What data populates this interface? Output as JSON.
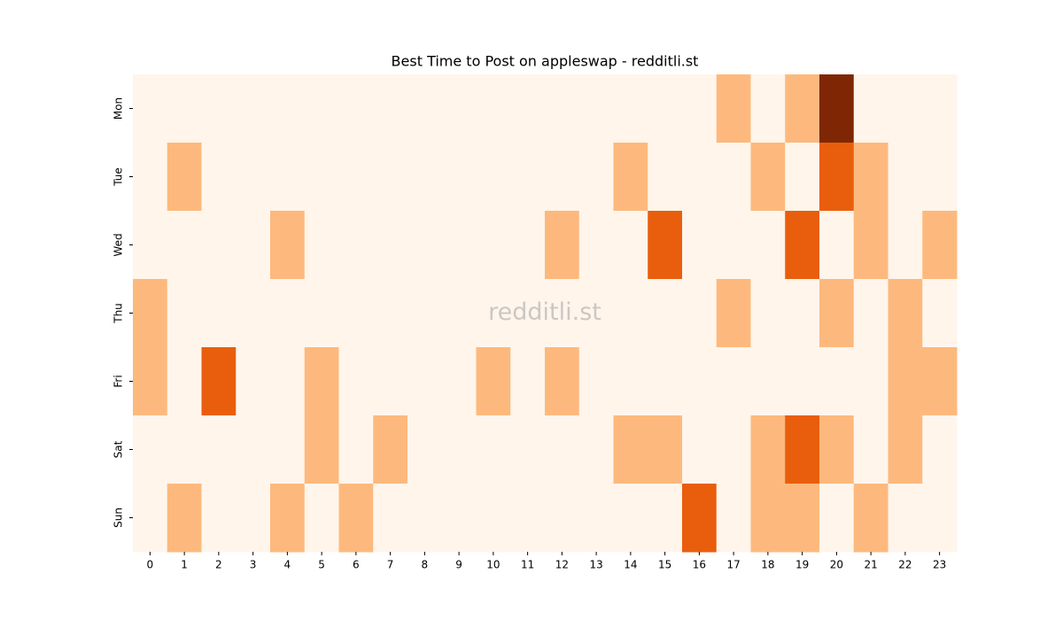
{
  "chart_data": {
    "type": "heatmap",
    "title": "Best Time to Post on appleswap - redditli.st",
    "watermark": "redditli.st",
    "x": [
      0,
      1,
      2,
      3,
      4,
      5,
      6,
      7,
      8,
      9,
      10,
      11,
      12,
      13,
      14,
      15,
      16,
      17,
      18,
      19,
      20,
      21,
      22,
      23
    ],
    "y": [
      "Mon",
      "Tue",
      "Wed",
      "Thu",
      "Fri",
      "Sat",
      "Sun"
    ],
    "color_scale": [
      "#fff5eb",
      "#fdb97d",
      "#e95e0d",
      "#7f2704"
    ],
    "values": [
      [
        0,
        0,
        0,
        0,
        0,
        0,
        0,
        0,
        0,
        0,
        0,
        0,
        0,
        0,
        0,
        0,
        0,
        1,
        0,
        1,
        3,
        0,
        0,
        0
      ],
      [
        0,
        1,
        0,
        0,
        0,
        0,
        0,
        0,
        0,
        0,
        0,
        0,
        0,
        0,
        1,
        0,
        0,
        0,
        1,
        0,
        2,
        1,
        0,
        0
      ],
      [
        0,
        0,
        0,
        0,
        1,
        0,
        0,
        0,
        0,
        0,
        0,
        0,
        1,
        0,
        0,
        2,
        0,
        0,
        0,
        2,
        0,
        1,
        0,
        1
      ],
      [
        1,
        0,
        0,
        0,
        0,
        0,
        0,
        0,
        0,
        0,
        0,
        0,
        0,
        0,
        0,
        0,
        0,
        1,
        0,
        0,
        1,
        0,
        1,
        0
      ],
      [
        1,
        0,
        2,
        0,
        0,
        1,
        0,
        0,
        0,
        0,
        1,
        0,
        1,
        0,
        0,
        0,
        0,
        0,
        0,
        0,
        0,
        0,
        1,
        1
      ],
      [
        0,
        0,
        0,
        0,
        0,
        1,
        0,
        1,
        0,
        0,
        0,
        0,
        0,
        0,
        1,
        1,
        0,
        0,
        1,
        2,
        1,
        0,
        1,
        0
      ],
      [
        0,
        1,
        0,
        0,
        1,
        0,
        1,
        0,
        0,
        0,
        0,
        0,
        0,
        0,
        0,
        0,
        2,
        0,
        1,
        1,
        0,
        1,
        0,
        0
      ]
    ]
  }
}
